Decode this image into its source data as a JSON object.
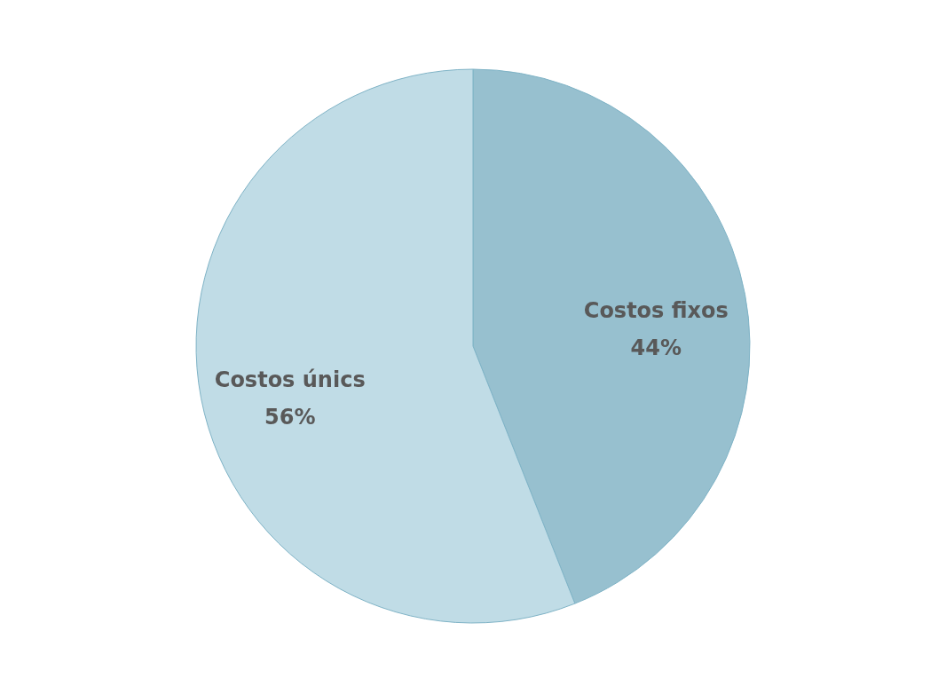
{
  "chart_data": {
    "type": "pie",
    "categories": [
      "Costos fixos",
      "Costos únics"
    ],
    "values": [
      44,
      56
    ],
    "colors": [
      "#97c0cf",
      "#c0dce6"
    ],
    "value_labels": [
      "44%",
      "56%"
    ]
  }
}
